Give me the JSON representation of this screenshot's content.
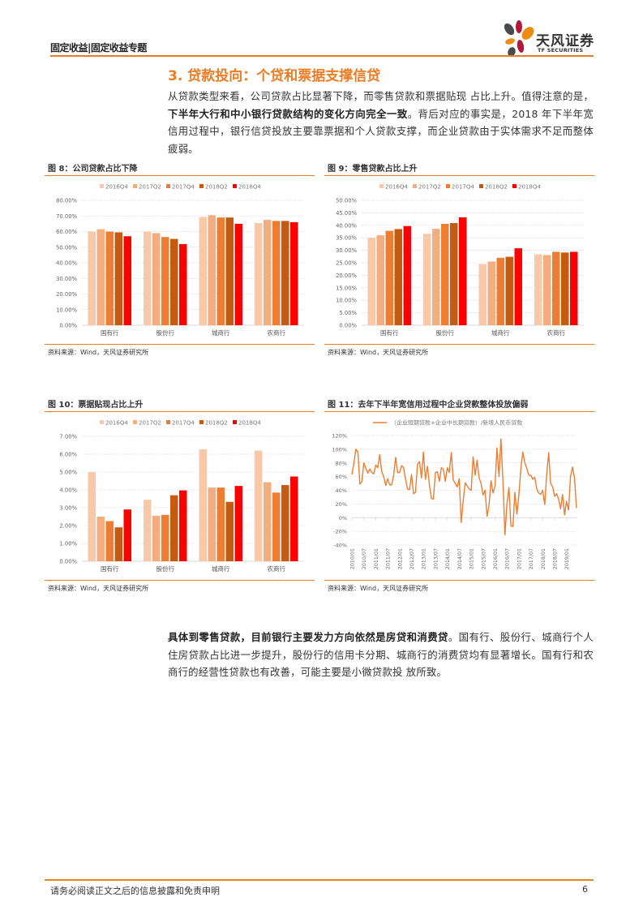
{
  "header": {
    "left_title": "固定收益|固定收益专题",
    "logo": {
      "name_cn": "天风证券",
      "name_en": "TF SECURITIES"
    },
    "accent_color": "#ec7c22"
  },
  "section": {
    "title": "3. 贷款投向：个贷和票据支撑信贷"
  },
  "paragraphs": {
    "p1": {
      "part1": "从贷款类型来看，公司贷款占比显著下降，而零售贷款和票据贴现 占比上升。值得注意的是，",
      "bold": "下半年大行和中小银行贷款结构的变化方向完全一致",
      "part2": "。背后对应的事实是，2018 年下半年宽信用过程中，银行信贷投放主要靠票据和个人贷款支撑，而企业贷款由于实体需求不足而整体疲弱。"
    },
    "p2": {
      "bold": "具体到零售贷款，目前银行主要发力方向依然是房贷和消费贷",
      "part2": "。国有行、股份行、城商行个人住房贷款占比进一步提升，股份行的信用卡分期、城商行的消费贷均有显著增长。国有行和农商行的经营性贷款也有改善，可能主要是小微贷款投 放所致。"
    }
  },
  "figures": {
    "fig8": {
      "title": "图 8：公司贷款占比下降",
      "source": "资料来源：Wind，天风证券研究所"
    },
    "fig9": {
      "title": "图 9：零售贷款占比上升",
      "source": "资料来源：Wind，天风证券研究所"
    },
    "fig10": {
      "title": "图 10：票据贴现占比上升",
      "source": "资料来源：Wind，天风证券研究所"
    },
    "fig11": {
      "title": "图 11：去年下半年宽信用过程中企业贷款整体投放偏弱",
      "source": "资料来源：Wind，天风证券研究所"
    }
  },
  "series_colors": [
    "#f8c9a8",
    "#f3ad7f",
    "#ed7d31",
    "#c55a11",
    "#ff0000"
  ],
  "chart_data": [
    {
      "id": "fig8",
      "type": "bar",
      "title": "公司贷款占比下降",
      "categories": [
        "国有行",
        "股份行",
        "城商行",
        "农商行"
      ],
      "series": [
        {
          "name": "2016Q4",
          "values": [
            60.0,
            60.0,
            69.3,
            65.5
          ]
        },
        {
          "name": "2017Q2",
          "values": [
            61.5,
            59.0,
            70.5,
            67.5
          ]
        },
        {
          "name": "2017Q4",
          "values": [
            60.0,
            56.5,
            69.0,
            66.8
          ]
        },
        {
          "name": "2018Q2",
          "values": [
            59.5,
            55.3,
            69.0,
            66.8
          ]
        },
        {
          "name": "2018Q4",
          "values": [
            57.0,
            52.0,
            65.0,
            66.0
          ]
        }
      ],
      "ylim": [
        0,
        80
      ],
      "yticks": [
        "0.00%",
        "10.00%",
        "20.00%",
        "30.00%",
        "40.00%",
        "50.00%",
        "60.00%",
        "70.00%",
        "80.00%"
      ],
      "grid": true,
      "legend_position": "top"
    },
    {
      "id": "fig9",
      "type": "bar",
      "title": "零售贷款占比上升",
      "categories": [
        "国有行",
        "股份行",
        "城商行",
        "农商行"
      ],
      "series": [
        {
          "name": "2016Q4",
          "values": [
            35.0,
            36.6,
            24.5,
            28.4
          ]
        },
        {
          "name": "2017Q2",
          "values": [
            36.0,
            38.6,
            25.5,
            28.1
          ]
        },
        {
          "name": "2017Q4",
          "values": [
            37.8,
            40.6,
            27.0,
            29.4
          ]
        },
        {
          "name": "2018Q2",
          "values": [
            38.5,
            40.9,
            27.4,
            29.1
          ]
        },
        {
          "name": "2018Q4",
          "values": [
            39.7,
            43.2,
            30.8,
            29.4
          ]
        }
      ],
      "ylim": [
        0,
        50
      ],
      "yticks": [
        "0.00%",
        "5.00%",
        "10.00%",
        "15.00%",
        "20.00%",
        "25.00%",
        "30.00%",
        "35.00%",
        "40.00%",
        "45.00%",
        "50.00%"
      ],
      "grid": true,
      "legend_position": "top"
    },
    {
      "id": "fig10",
      "type": "bar",
      "title": "票据贴现占比上升",
      "categories": [
        "国有行",
        "股份行",
        "城商行",
        "农商行"
      ],
      "series": [
        {
          "name": "2016Q4",
          "values": [
            5.0,
            3.45,
            6.27,
            6.2
          ]
        },
        {
          "name": "2017Q2",
          "values": [
            2.5,
            2.55,
            4.13,
            4.43
          ]
        },
        {
          "name": "2017Q4",
          "values": [
            2.25,
            2.6,
            4.13,
            3.85
          ]
        },
        {
          "name": "2018Q2",
          "values": [
            1.9,
            3.7,
            3.33,
            4.27
          ]
        },
        {
          "name": "2018Q4",
          "values": [
            2.9,
            3.97,
            4.22,
            4.75
          ]
        }
      ],
      "ylim": [
        0,
        7
      ],
      "yticks": [
        "0.00%",
        "1.00%",
        "2.00%",
        "3.00%",
        "4.00%",
        "5.00%",
        "6.00%",
        "7.00%"
      ],
      "grid": true,
      "legend_position": "top"
    },
    {
      "id": "fig11",
      "type": "line",
      "title": "去年下半年宽信用过程中企业贷款整体投放偏弱",
      "series_name": "（企业短期贷款+企业中长期贷款）/新增人民币贷款",
      "color": "#ed7d31",
      "x_start": "2010/01",
      "x_step": "monthly",
      "xticks": [
        "2010/01",
        "2010/07",
        "2011/01",
        "2011/07",
        "2012/01",
        "2012/07",
        "2013/01",
        "2013/07",
        "2014/01",
        "2014/07",
        "2015/01",
        "2015/07",
        "2016/01",
        "2016/07",
        "2017/01",
        "2017/07",
        "2018/01",
        "2018/07",
        "2019/01"
      ],
      "ylim": [
        -40,
        120
      ],
      "yticks": [
        "-40%",
        "-20%",
        "0%",
        "20%",
        "40%",
        "60%",
        "80%",
        "100%",
        "120%"
      ],
      "values": [
        63,
        80,
        100,
        96,
        49,
        53,
        80,
        72,
        65,
        71,
        66,
        64,
        77,
        73,
        92,
        67,
        60,
        47,
        57,
        48,
        48,
        62,
        88,
        66,
        66,
        76,
        73,
        56,
        42,
        41,
        63,
        35,
        37,
        78,
        82,
        58,
        96,
        56,
        75,
        48,
        28,
        27,
        66,
        67,
        53,
        73,
        71,
        53,
        73,
        66,
        95,
        55,
        50,
        45,
        57,
        -7,
        25,
        51,
        46,
        42,
        40,
        89,
        62,
        84,
        58,
        50,
        33,
        40,
        2,
        18,
        54,
        36,
        46,
        102,
        60,
        115,
        52,
        -25,
        20,
        44,
        -12,
        -13,
        37,
        5,
        33,
        72,
        96,
        80,
        72,
        62,
        62,
        56,
        59,
        42,
        36,
        34,
        40,
        19,
        63,
        95,
        50,
        45,
        31,
        35,
        27,
        13,
        34,
        4,
        24,
        11,
        60,
        74,
        58,
        14
      ],
      "grid": true,
      "legend_position": "top"
    }
  ],
  "footer": {
    "disclaimer": "请务必阅读正文之后的信息披露和免责申明",
    "page_number": "6"
  }
}
